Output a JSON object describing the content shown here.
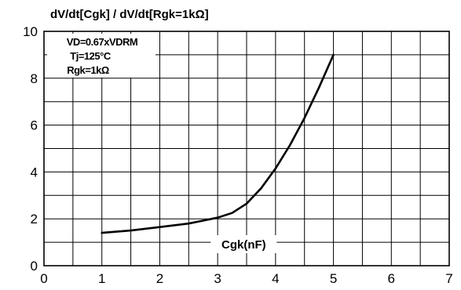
{
  "chart_data": {
    "type": "line",
    "title": "dV/dt[Cgk] / dV/dt[Rgk=1kΩ]",
    "xlabel": "Cgk(nF)",
    "ylabel": "",
    "xlim": [
      0,
      7
    ],
    "ylim": [
      0,
      10
    ],
    "x_ticks": [
      0,
      1,
      2,
      3,
      4,
      5,
      6,
      7
    ],
    "y_ticks": [
      0,
      2,
      4,
      6,
      8,
      10
    ],
    "grid": true,
    "annotations": [
      "VD=0.67xVDRM",
      "Tj=125°C",
      "Rgk=1kΩ"
    ],
    "series": [
      {
        "x": [
          1.0,
          1.5,
          2.0,
          2.5,
          3.0,
          3.25,
          3.5,
          3.75,
          4.0,
          4.25,
          4.5,
          4.75,
          5.0
        ],
        "y": [
          1.4,
          1.5,
          1.65,
          1.8,
          2.05,
          2.25,
          2.65,
          3.3,
          4.15,
          5.15,
          6.3,
          7.6,
          9.0
        ]
      }
    ]
  }
}
